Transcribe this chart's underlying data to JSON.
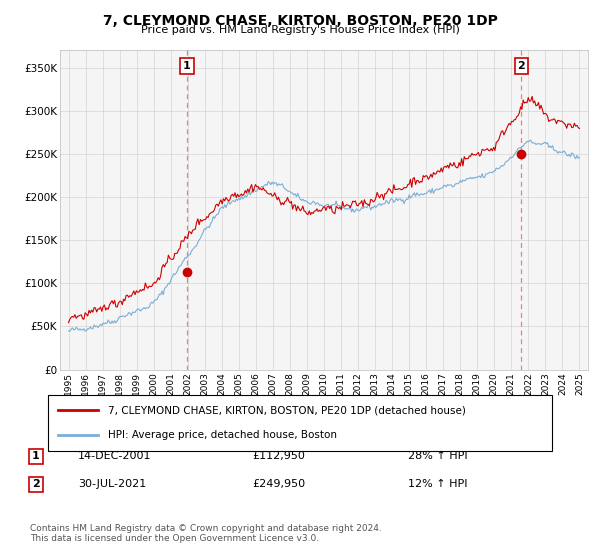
{
  "title": "7, CLEYMOND CHASE, KIRTON, BOSTON, PE20 1DP",
  "subtitle": "Price paid vs. HM Land Registry's House Price Index (HPI)",
  "legend_line1": "7, CLEYMOND CHASE, KIRTON, BOSTON, PE20 1DP (detached house)",
  "legend_line2": "HPI: Average price, detached house, Boston",
  "transaction1_date": "14-DEC-2001",
  "transaction1_price": "£112,950",
  "transaction1_hpi": "28% ↑ HPI",
  "transaction2_date": "30-JUL-2021",
  "transaction2_price": "£249,950",
  "transaction2_hpi": "12% ↑ HPI",
  "footer": "Contains HM Land Registry data © Crown copyright and database right 2024.\nThis data is licensed under the Open Government Licence v3.0.",
  "hpi_color": "#7aaed6",
  "price_color": "#cc0000",
  "vline_color": "#f08080",
  "transaction1_x": 2001.96,
  "transaction2_x": 2021.58,
  "transaction1_y": 112950,
  "transaction2_y": 249950,
  "ylim": [
    0,
    370000
  ],
  "xlim_start": 1994.5,
  "xlim_end": 2025.5,
  "bg_color": "#f5f5f5"
}
